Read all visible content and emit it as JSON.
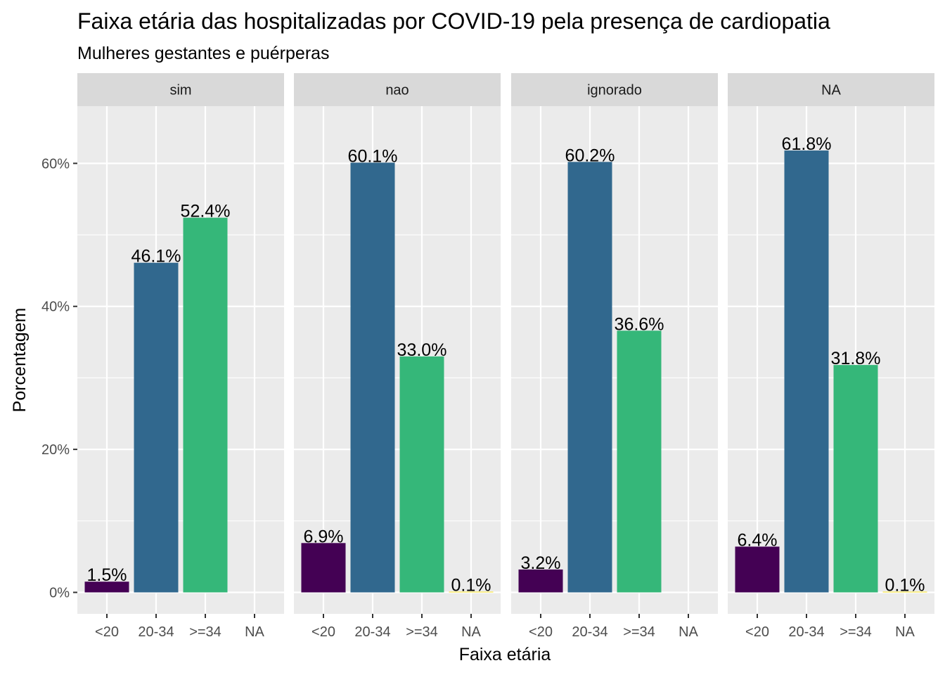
{
  "chart_data": {
    "type": "bar",
    "title": "Faixa etária das hospitalizadas por COVID-19 pela presença de cardiopatia",
    "subtitle": "Mulheres gestantes e puérperas",
    "xlabel": "Faixa etária",
    "ylabel": "Porcentagem",
    "categories": [
      "<20",
      "20-34",
      ">=34",
      "NA"
    ],
    "ylim": [
      -3.0,
      68.0
    ],
    "yticks": [
      0,
      20,
      40,
      60
    ],
    "ytick_labels": [
      "0%",
      "20%",
      "40%",
      "60%"
    ],
    "grid": true,
    "legend": "none",
    "category_colors": [
      "#440154",
      "#31688e",
      "#35b779",
      "#fde725"
    ],
    "panel_background": "#ebebeb",
    "strip_background": "#d9d9d9",
    "panels": [
      {
        "name": "sim",
        "values": [
          1.5,
          46.1,
          52.4,
          null
        ],
        "labels": [
          "1.5%",
          "46.1%",
          "52.4%",
          ""
        ]
      },
      {
        "name": "nao",
        "values": [
          6.9,
          60.1,
          33.0,
          0.1
        ],
        "labels": [
          "6.9%",
          "60.1%",
          "33.0%",
          "0.1%"
        ]
      },
      {
        "name": "ignorado",
        "values": [
          3.2,
          60.2,
          36.6,
          null
        ],
        "labels": [
          "3.2%",
          "60.2%",
          "36.6%",
          ""
        ]
      },
      {
        "name": "NA",
        "values": [
          6.4,
          61.8,
          31.8,
          0.1
        ],
        "labels": [
          "6.4%",
          "61.8%",
          "31.8%",
          "0.1%"
        ]
      }
    ]
  }
}
